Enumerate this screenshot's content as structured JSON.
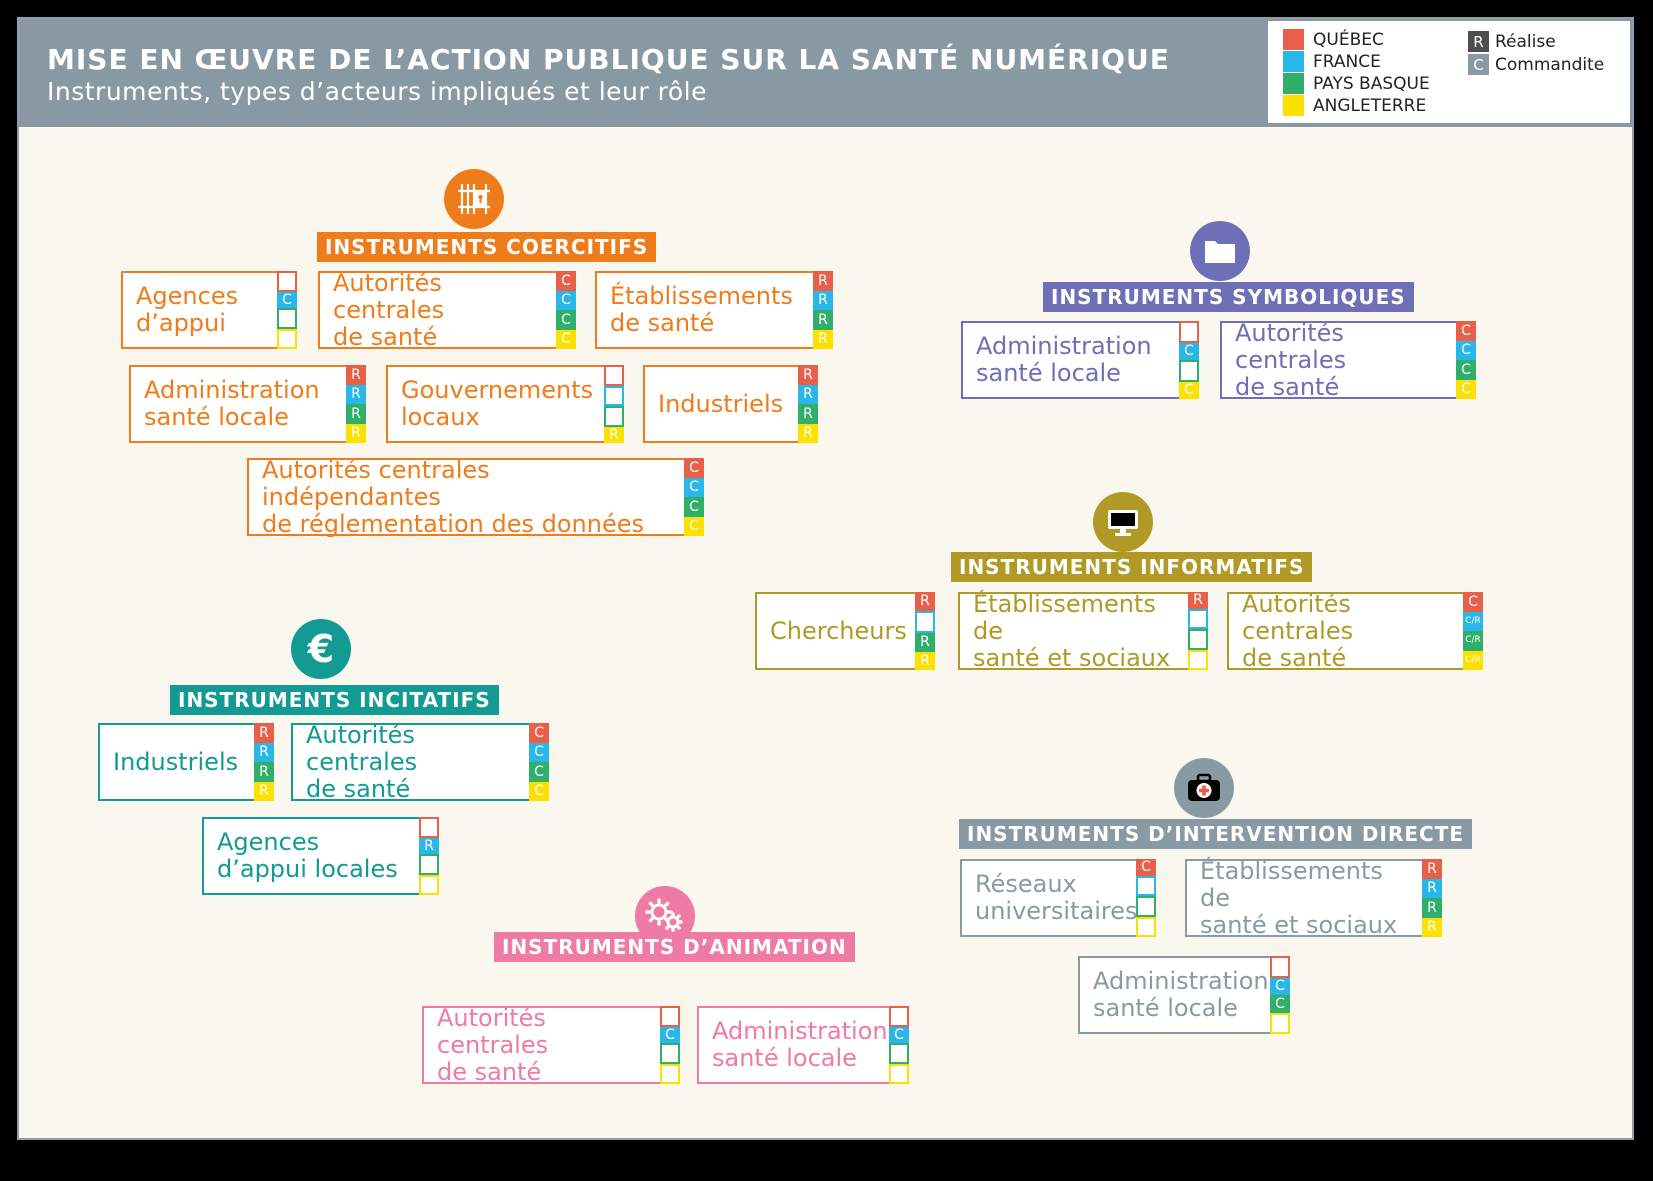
{
  "header": {
    "title": "MISE EN ŒUVRE DE L’ACTION PUBLIQUE SUR LA SANTÉ NUMÉRIQUE",
    "subtitle": "Instruments, types d’acteurs impliqués et leur rôle"
  },
  "legend": {
    "countries": [
      {
        "name": "QUÉBEC",
        "color": "#e8604a"
      },
      {
        "name": "FRANCE",
        "color": "#29b6e8"
      },
      {
        "name": "PAYS BASQUE",
        "color": "#2faf69"
      },
      {
        "name": "ANGLETERRE",
        "color": "#fce000"
      }
    ],
    "roles": [
      {
        "code": "R",
        "label": "Réalise"
      },
      {
        "code": "C",
        "label": "Commandite"
      }
    ]
  },
  "colors": {
    "quebec": "#e8604a",
    "france": "#29b6e8",
    "pays_basque": "#2faf69",
    "angleterre": "#fce000"
  },
  "sections": [
    {
      "id": "coercitifs",
      "title": "INSTRUMENTS COERCITIFS",
      "color": "#ef7c1a",
      "icon": "gate-lock-icon",
      "actors": [
        {
          "label": "Agences\nd’appui",
          "marks": [
            "",
            "C",
            "",
            ""
          ]
        },
        {
          "label": "Autorités centrales\nde santé",
          "marks": [
            "C",
            "C",
            "C",
            "C"
          ]
        },
        {
          "label": "Établissements\nde santé",
          "marks": [
            "R",
            "R",
            "R",
            "R"
          ]
        },
        {
          "label": "Administration\nsanté locale",
          "marks": [
            "R",
            "R",
            "R",
            "R"
          ]
        },
        {
          "label": "Gouvernements\nlocaux",
          "marks": [
            "",
            "",
            "",
            "R"
          ]
        },
        {
          "label": "Industriels",
          "marks": [
            "R",
            "R",
            "R",
            "R"
          ]
        },
        {
          "label": "Autorités centrales indépendantes\nde réglementation des données",
          "marks": [
            "C",
            "C",
            "C",
            "C"
          ]
        }
      ]
    },
    {
      "id": "symboliques",
      "title": "INSTRUMENTS SYMBOLIQUES",
      "color": "#6e6fb6",
      "icon": "folder-icon",
      "actors": [
        {
          "label": "Administration\nsanté locale",
          "marks": [
            "",
            "C",
            "",
            "C"
          ]
        },
        {
          "label": "Autorités centrales\nde santé",
          "marks": [
            "C",
            "C",
            "C",
            "C"
          ]
        }
      ]
    },
    {
      "id": "informatifs",
      "title": "INSTRUMENTS INFORMATIFS",
      "color": "#b09a25",
      "icon": "monitor-icon",
      "actors": [
        {
          "label": "Chercheurs",
          "marks": [
            "R",
            "",
            "R",
            "R"
          ]
        },
        {
          "label": "Établissements de\nsanté et sociaux",
          "marks": [
            "R",
            "",
            "",
            ""
          ]
        },
        {
          "label": "Autorités centrales\nde santé",
          "marks": [
            "C",
            "C/R",
            "C/R",
            "C/R"
          ]
        }
      ]
    },
    {
      "id": "incitatifs",
      "title": "INSTRUMENTS INCITATIFS",
      "color": "#139a92",
      "icon": "euro-icon",
      "actors": [
        {
          "label": "Industriels",
          "marks": [
            "R",
            "R",
            "R",
            "R"
          ]
        },
        {
          "label": "Autorités centrales\nde santé",
          "marks": [
            "C",
            "C",
            "C",
            "C"
          ]
        },
        {
          "label": "Agences\nd’appui locales",
          "marks": [
            "",
            "R",
            "",
            ""
          ]
        }
      ]
    },
    {
      "id": "intervention",
      "title": "INSTRUMENTS D’INTERVENTION DIRECTE",
      "color": "#8a9aa5",
      "icon": "medical-kit-icon",
      "actors": [
        {
          "label": "Réseaux\nuniversitaires",
          "marks": [
            "C",
            "",
            "",
            ""
          ]
        },
        {
          "label": "Établissements de\nsanté et sociaux",
          "marks": [
            "R",
            "R",
            "R",
            "R"
          ]
        },
        {
          "label": "Administration\nsanté locale",
          "marks": [
            "",
            "C",
            "C",
            ""
          ]
        }
      ]
    },
    {
      "id": "animation",
      "title": "INSTRUMENTS D’ANIMATION",
      "color": "#ef7aa4",
      "icon": "gears-icon",
      "actors": [
        {
          "label": "Autorités centrales\nde santé",
          "marks": [
            "",
            "C",
            "",
            ""
          ]
        },
        {
          "label": "Administration\nsanté locale",
          "marks": [
            "",
            "C",
            "",
            ""
          ]
        }
      ]
    }
  ]
}
